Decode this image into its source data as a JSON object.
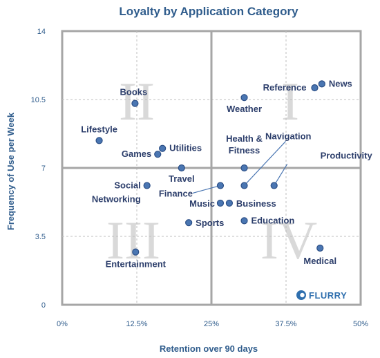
{
  "chart_data": {
    "type": "scatter",
    "title": "Loyalty by Application Category",
    "xlabel": "Retention over 90 days",
    "ylabel": "Frequency of Use per Week",
    "xlim": [
      0,
      50
    ],
    "ylim": [
      0,
      14
    ],
    "x_ticks": [
      0,
      12.5,
      25,
      37.5,
      50
    ],
    "x_tick_labels": [
      "0%",
      "12.5%",
      "25%",
      "37.5%",
      "50%"
    ],
    "y_ticks": [
      0,
      3.5,
      7,
      10.5,
      14
    ],
    "y_tick_labels": [
      "0",
      "3.5",
      "7",
      "10.5",
      "14"
    ],
    "quadrant_dividers": {
      "x": 25,
      "y": 7
    },
    "quadrant_labels": [
      "I",
      "II",
      "III",
      "IV"
    ],
    "marker_color": "#4a76b2",
    "points": [
      {
        "label": "News",
        "x": 43.5,
        "y": 11.3
      },
      {
        "label": "Reference",
        "x": 42.3,
        "y": 11.1
      },
      {
        "label": "Weather",
        "x": 30.5,
        "y": 10.6
      },
      {
        "label": "Books",
        "x": 12.2,
        "y": 10.3
      },
      {
        "label": "Lifestyle",
        "x": 6.2,
        "y": 8.4
      },
      {
        "label": "Utilities",
        "x": 16.8,
        "y": 8.0
      },
      {
        "label": "Games",
        "x": 16.0,
        "y": 7.7
      },
      {
        "label": "Travel",
        "x": 20.0,
        "y": 7.0
      },
      {
        "label": "Health & Fitness",
        "x": 30.5,
        "y": 7.0
      },
      {
        "label": "Social Networking",
        "x": 14.2,
        "y": 6.1
      },
      {
        "label": "Finance",
        "x": 26.5,
        "y": 6.1
      },
      {
        "label": "Navigation",
        "x": 30.5,
        "y": 6.1
      },
      {
        "label": "Productivity",
        "x": 35.5,
        "y": 6.1
      },
      {
        "label": "Music",
        "x": 26.5,
        "y": 5.2
      },
      {
        "label": "Business",
        "x": 28.0,
        "y": 5.2
      },
      {
        "label": "Education",
        "x": 30.5,
        "y": 4.3
      },
      {
        "label": "Sports",
        "x": 21.2,
        "y": 4.2
      },
      {
        "label": "Entertainment",
        "x": 12.3,
        "y": 2.7
      },
      {
        "label": "Medical",
        "x": 43.2,
        "y": 2.9
      }
    ]
  },
  "brand": {
    "name": "FLURRY",
    "icon": "flurry-logo-icon"
  }
}
